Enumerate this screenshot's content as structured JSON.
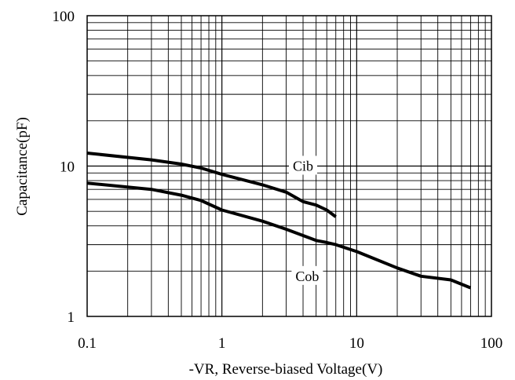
{
  "chart_data": {
    "type": "line",
    "xscale": "log",
    "yscale": "log",
    "xlabel": "-VR, Reverse-biased Voltage(V)",
    "ylabel": "Capacitance(pF)",
    "xlim": [
      0.1,
      100
    ],
    "ylim": [
      1,
      100
    ],
    "x_ticks": [
      {
        "value": 0.1,
        "label": "0.1"
      },
      {
        "value": 1,
        "label": "1"
      },
      {
        "value": 10,
        "label": "10"
      },
      {
        "value": 100,
        "label": "100"
      }
    ],
    "y_ticks": [
      {
        "value": 1,
        "label": "1"
      },
      {
        "value": 10,
        "label": "10"
      },
      {
        "value": 100,
        "label": "100"
      }
    ],
    "grid": true,
    "series": [
      {
        "name": "Cib",
        "label_at": [
          4.0,
          10.0
        ],
        "points": [
          [
            0.1,
            12.2
          ],
          [
            0.3,
            11.0
          ],
          [
            0.5,
            10.3
          ],
          [
            0.7,
            9.7
          ],
          [
            1.0,
            8.8
          ],
          [
            2.0,
            7.5
          ],
          [
            3.0,
            6.7
          ],
          [
            4.0,
            5.8
          ],
          [
            5.0,
            5.5
          ],
          [
            6.0,
            5.1
          ],
          [
            7.0,
            4.6
          ]
        ]
      },
      {
        "name": "Cob",
        "label_at": [
          4.3,
          1.85
        ],
        "points": [
          [
            0.1,
            7.7
          ],
          [
            0.3,
            7.0
          ],
          [
            0.5,
            6.4
          ],
          [
            0.7,
            5.9
          ],
          [
            1.0,
            5.1
          ],
          [
            2.0,
            4.3
          ],
          [
            3.0,
            3.8
          ],
          [
            5.0,
            3.2
          ],
          [
            6.0,
            3.1
          ],
          [
            7.0,
            3.0
          ],
          [
            10.0,
            2.7
          ],
          [
            20.0,
            2.1
          ],
          [
            30.0,
            1.85
          ],
          [
            50.0,
            1.75
          ],
          [
            70.0,
            1.55
          ]
        ]
      }
    ]
  }
}
